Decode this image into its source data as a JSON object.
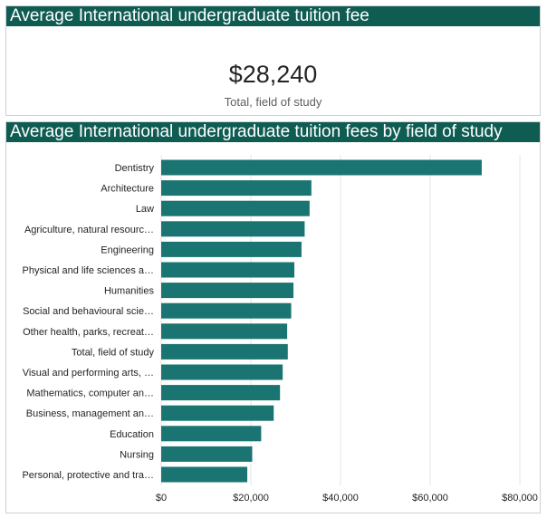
{
  "kpi": {
    "title": "Average International undergraduate tuition fee",
    "value": "$28,240",
    "caption": "Total, field of study"
  },
  "chart_title": "Average International undergraduate tuition fees by field of study",
  "colors": {
    "bar": "#1a7471",
    "header": "#0f5c52",
    "grid": "#e6e6e6"
  },
  "chart_data": {
    "type": "bar",
    "orientation": "horizontal",
    "title": "Average International undergraduate tuition fees by field of study",
    "xlabel": "",
    "ylabel": "",
    "xlim": [
      0,
      80000
    ],
    "xticks": [
      0,
      20000,
      40000,
      60000,
      80000
    ],
    "xtick_labels": [
      "$0",
      "$20,000",
      "$40,000",
      "$60,000",
      "$80,000"
    ],
    "grid": true,
    "categories": [
      "Dentistry",
      "Architecture",
      "Law",
      "Agriculture, natural resourc…",
      "Engineering",
      "Physical and life sciences a…",
      "Humanities",
      "Social and behavioural scie…",
      "Other health, parks, recreat…",
      "Total, field of study",
      "Visual and performing arts, …",
      "Mathematics, computer an…",
      "Business, management an…",
      "Education",
      "Nursing",
      "Personal, protective and tra…"
    ],
    "values": [
      71500,
      33500,
      33100,
      32000,
      31300,
      29700,
      29500,
      29000,
      28100,
      28240,
      27100,
      26500,
      25100,
      22300,
      20300,
      19200
    ]
  }
}
